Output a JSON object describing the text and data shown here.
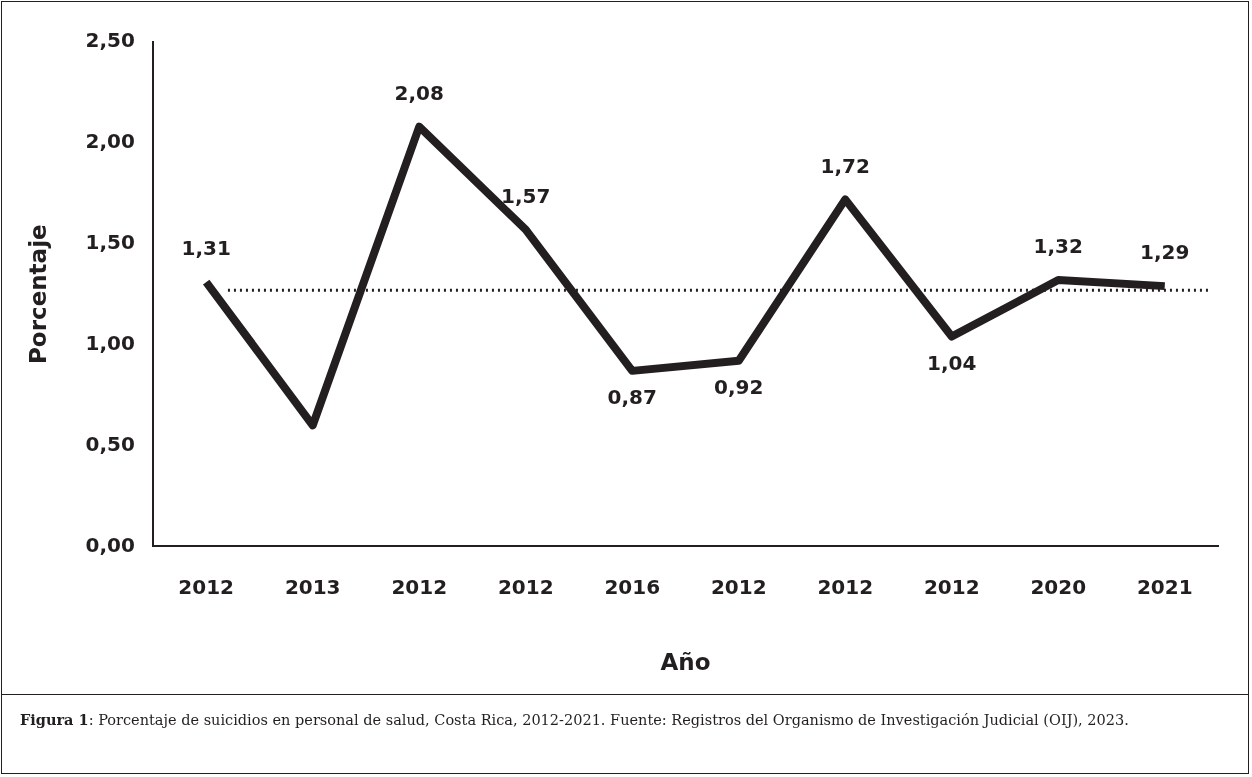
{
  "chart_data": {
    "type": "line",
    "xlabel": "Año",
    "ylabel": "Porcentaje",
    "categories": [
      "2012",
      "2013",
      "2012",
      "2012",
      "2016",
      "2012",
      "2012",
      "2012",
      "2020",
      "2021"
    ],
    "series": [
      {
        "color": "#231f20",
        "values": [
          1.31,
          0.6,
          2.08,
          1.57,
          0.87,
          0.92,
          1.72,
          1.04,
          1.32,
          1.29
        ],
        "value_labels": [
          "1,31",
          null,
          "2,08",
          "1,57",
          "0,87",
          "0,92",
          "1,72",
          "1,04",
          "1,32",
          "1,29"
        ]
      }
    ],
    "ylim": [
      0,
      2.5
    ],
    "yticks": [
      {
        "value": 0,
        "label": "0,00"
      },
      {
        "value": 0.5,
        "label": "0,50"
      },
      {
        "value": 1,
        "label": "1,00"
      },
      {
        "value": 1.5,
        "label": "1,50"
      },
      {
        "value": 2,
        "label": "2,00"
      },
      {
        "value": 2.5,
        "label": "2,50"
      }
    ],
    "ref_lines": [
      {
        "axis": "y",
        "value": 1.27,
        "line_style": "dotted",
        "color": "#231f20"
      }
    ],
    "grid": false,
    "legend": false,
    "marker": "none",
    "line_style": "solid",
    "annotations": [
      "Figura 1: Porcentaje de suicidios en personal de salud, Costa Rica, 2012-2021. Fuente: Registros del Organismo de Investigación Judicial (OIJ), 2023."
    ]
  }
}
